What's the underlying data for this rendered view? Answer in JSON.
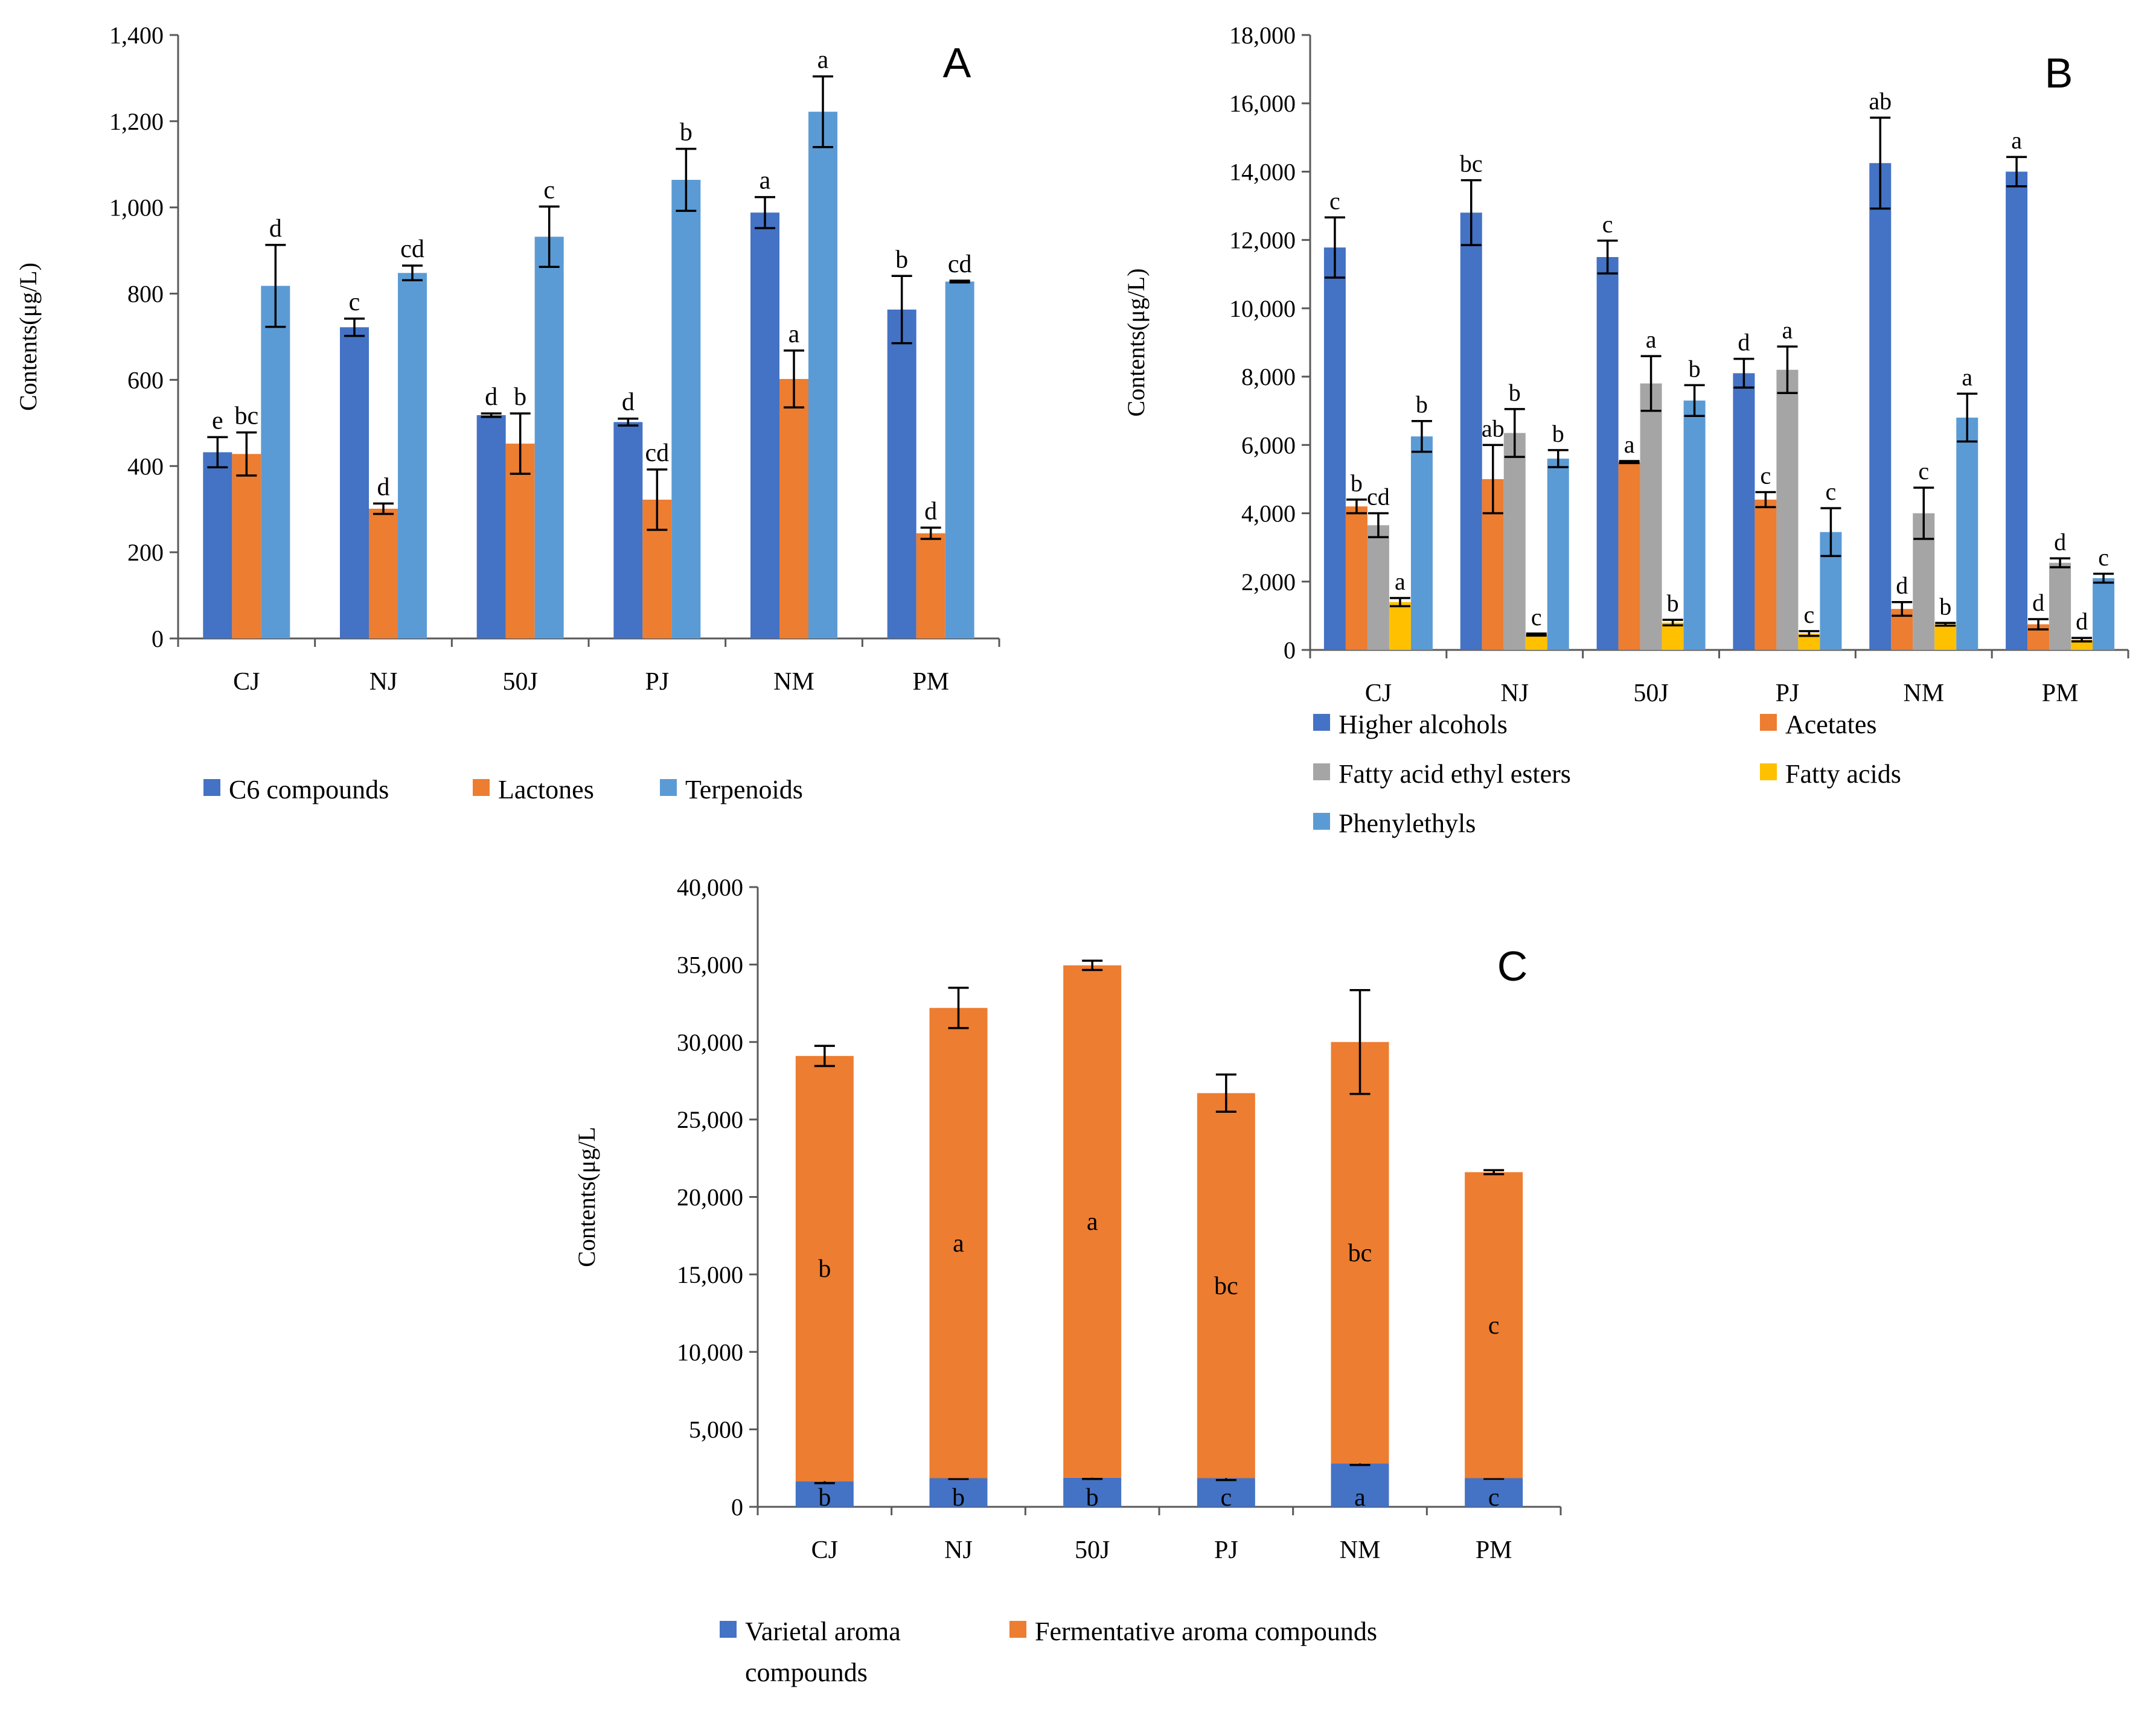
{
  "chart_data": [
    {
      "panel": "A",
      "type": "bar",
      "letter": "A",
      "ylabel": "Contents(μg/L)",
      "ylim": [
        0,
        1400
      ],
      "yticks": [
        0,
        200,
        400,
        600,
        800,
        1000,
        1200,
        1400
      ],
      "ytick_labels": [
        "0",
        "200",
        "400",
        "600",
        "800",
        "1,000",
        "1,200",
        "1,400"
      ],
      "categories": [
        "CJ",
        "NJ",
        "50J",
        "PJ",
        "NM",
        "PM"
      ],
      "series": [
        {
          "name": "C6 compounds",
          "color": "#4472c4",
          "values": [
            432,
            722,
            518,
            502,
            988,
            763
          ],
          "errors": [
            35,
            20,
            4,
            8,
            36,
            78
          ],
          "labels": [
            "e",
            "c",
            "d",
            "d",
            "a",
            "b"
          ]
        },
        {
          "name": "Lactones",
          "color": "#ed7d31",
          "values": [
            428,
            301,
            452,
            322,
            602,
            244
          ],
          "errors": [
            50,
            12,
            70,
            70,
            66,
            13
          ],
          "labels": [
            "bc",
            "d",
            "b",
            "cd",
            "a",
            "d"
          ]
        },
        {
          "name": "Terpenoids",
          "color": "#5b9bd5",
          "values": [
            818,
            848,
            932,
            1064,
            1222,
            828
          ],
          "errors": [
            95,
            17,
            70,
            72,
            82,
            2
          ],
          "labels": [
            "d",
            "cd",
            "c",
            "b",
            "a",
            "cd"
          ]
        }
      ]
    },
    {
      "panel": "B",
      "type": "bar",
      "letter": "B",
      "ylabel": "Contents(μg/L)",
      "ylim": [
        0,
        18000
      ],
      "yticks": [
        0,
        2000,
        4000,
        6000,
        8000,
        10000,
        12000,
        14000,
        16000,
        18000
      ],
      "ytick_labels": [
        "0",
        "2,000",
        "4,000",
        "6,000",
        "8,000",
        "10,000",
        "12,000",
        "14,000",
        "16,000",
        "18,000"
      ],
      "categories": [
        "CJ",
        "NJ",
        "50J",
        "PJ",
        "NM",
        "PM"
      ],
      "series": [
        {
          "name": "Higher alcohols",
          "color": "#4472c4",
          "values": [
            11780,
            12800,
            11500,
            8100,
            14250,
            14000
          ],
          "errors": [
            880,
            950,
            480,
            420,
            1330,
            430
          ],
          "labels": [
            "c",
            "bc",
            "c",
            "d",
            "ab",
            "a"
          ]
        },
        {
          "name": "Acetates",
          "color": "#ed7d31",
          "values": [
            4200,
            5000,
            5500,
            4400,
            1200,
            750
          ],
          "errors": [
            200,
            1000,
            30,
            220,
            200,
            150
          ],
          "labels": [
            "b",
            "ab",
            "a",
            "c",
            "d",
            "d"
          ]
        },
        {
          "name": "Fatty acid ethyl esters",
          "color": "#a5a5a5",
          "values": [
            3650,
            6350,
            7800,
            8200,
            4000,
            2550
          ],
          "errors": [
            350,
            700,
            800,
            680,
            750,
            130
          ],
          "labels": [
            "cd",
            "b",
            "a",
            "a",
            "c",
            "d"
          ]
        },
        {
          "name": "Fatty acids",
          "color": "#ffc000",
          "values": [
            1400,
            450,
            800,
            480,
            750,
            300
          ],
          "errors": [
            120,
            30,
            80,
            70,
            40,
            50
          ],
          "labels": [
            "a",
            "c",
            "b",
            "c",
            "b",
            "d"
          ]
        },
        {
          "name": "Phenylethyls",
          "color": "#5b9bd5",
          "values": [
            6250,
            5600,
            7300,
            3450,
            6800,
            2100
          ],
          "errors": [
            450,
            250,
            450,
            700,
            700,
            130
          ],
          "labels": [
            "b",
            "b",
            "b",
            "c",
            "a",
            "c"
          ]
        }
      ]
    },
    {
      "panel": "C",
      "type": "bar",
      "stacked": true,
      "letter": "C",
      "ylabel": "Contents(μg/L",
      "ylim": [
        0,
        40000
      ],
      "yticks": [
        0,
        5000,
        10000,
        15000,
        20000,
        25000,
        30000,
        35000,
        40000
      ],
      "ytick_labels": [
        "0",
        "5,000",
        "10,000",
        "15,000",
        "20,000",
        "25,000",
        "30,000",
        "35,000",
        "40,000"
      ],
      "categories": [
        "CJ",
        "NJ",
        "50J",
        "PJ",
        "NM",
        "PM"
      ],
      "series": [
        {
          "name": "Varietal aroma compounds",
          "legend_lines": [
            "Varietal aroma",
            "compounds"
          ],
          "color": "#4472c4",
          "values": [
            1650,
            1850,
            1880,
            1850,
            2800,
            1850
          ],
          "errors": [
            120,
            50,
            80,
            120,
            100,
            40
          ],
          "labels": [
            "b",
            "b",
            "b",
            "c",
            "a",
            "c"
          ]
        },
        {
          "name": "Fermentative aroma compounds",
          "legend_lines": [
            "Fermentative aroma compounds"
          ],
          "color": "#ed7d31",
          "values": [
            27450,
            30350,
            33070,
            24850,
            27200,
            19750
          ],
          "errors": [
            650,
            1300,
            300,
            1200,
            3350,
            130
          ],
          "labels": [
            "b",
            "a",
            "a",
            "bc",
            "bc",
            "c"
          ]
        }
      ]
    }
  ]
}
